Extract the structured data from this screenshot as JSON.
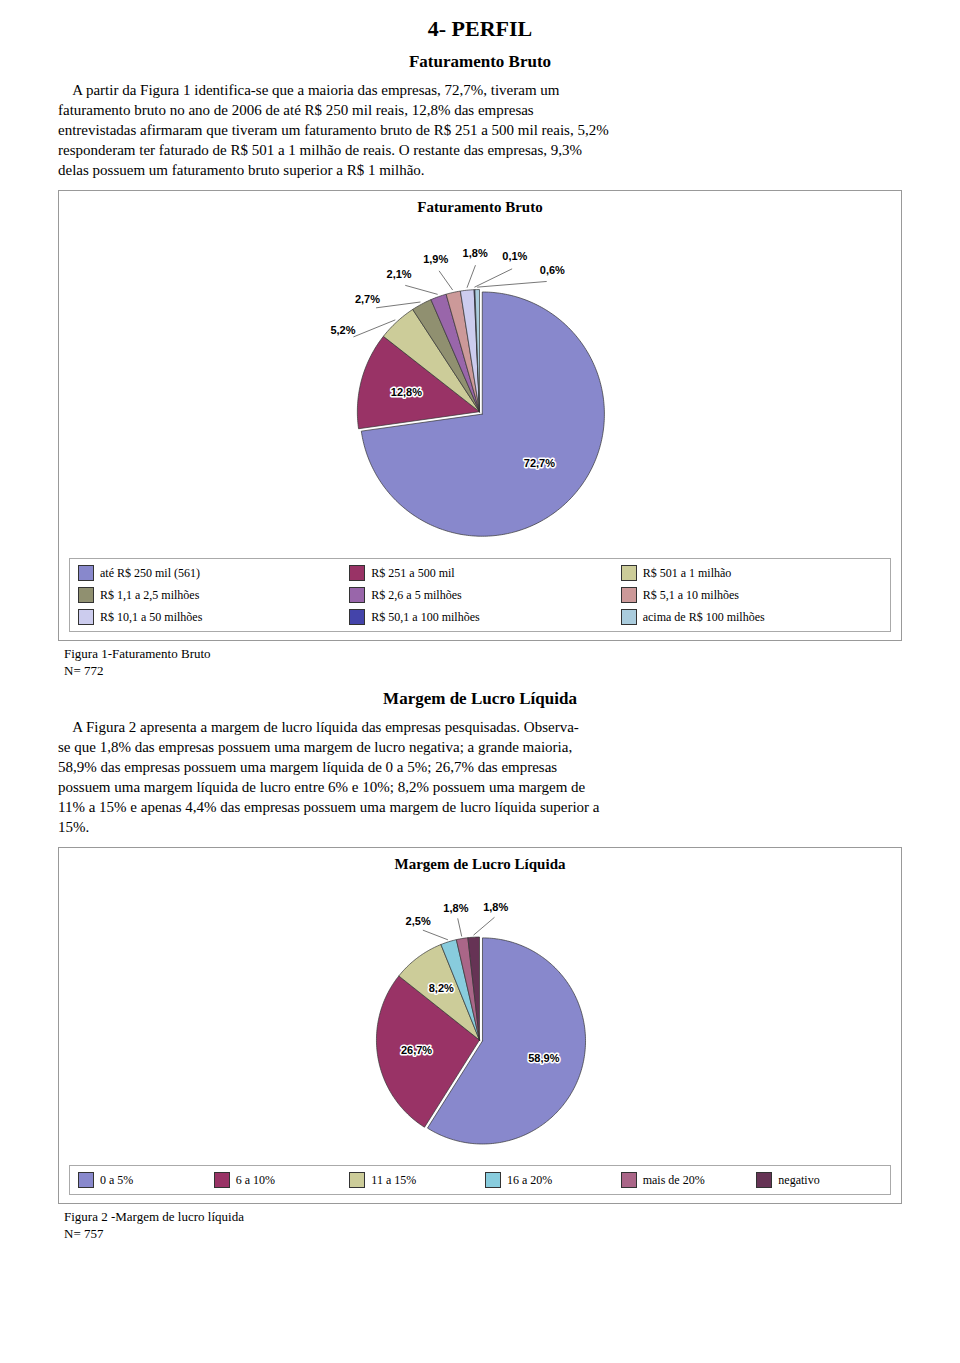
{
  "title": "4- PERFIL",
  "chart_data": [
    {
      "type": "pie",
      "subtitle": "Faturamento Bruto",
      "annotations": [
        "    A partir da Figura 1 identifica-se que a maioria das empresas, 72,7%, tiveram um",
        "faturamento bruto no ano de 2006 de até R$ 250 mil reais, 12,8% das empresas",
        "entrevistadas afirmaram que tiveram um faturamento bruto de R$ 251 a 500 mil reais, 5,2%",
        "responderam ter faturado de R$ 501 a 1 milhão de reais. O restante das empresas, 9,3%",
        "delas possuem um faturamento bruto superior a R$ 1 milhão."
      ],
      "title": "Faturamento Bruto",
      "categories": [
        "até R$ 250 mil (561)",
        "R$ 251 a 500 mil",
        "R$ 501 a 1 milhão",
        "R$ 1,1 a 2,5 milhões",
        "R$ 2,6 a 5 milhões",
        "R$ 5,1 a 10 milhões",
        "R$ 10,1 a 50 milhões",
        "R$ 50,1 a 100 milhões",
        "acima de R$ 100 milhões"
      ],
      "values": [
        72.7,
        12.8,
        5.2,
        2.7,
        2.1,
        1.9,
        1.8,
        0.1,
        0.6
      ],
      "value_labels": [
        "72,7%",
        "12,8%",
        "5,2%",
        "2,7%",
        "2,1%",
        "1,9%",
        "1,8%",
        "0,1%",
        "0,6%"
      ],
      "colors": [
        "#8888CC",
        "#993366",
        "#CCCC99",
        "#909070",
        "#9966AA",
        "#CC9999",
        "#CCCCEE",
        "#4444AA",
        "#AACCDD"
      ],
      "data_labels": true,
      "legend": "bottom",
      "caption": [
        "Figura 1-Faturamento Bruto",
        "N= 772"
      ]
    },
    {
      "type": "pie",
      "subtitle": "Margem de Lucro Líquida",
      "annotations": [
        "    A Figura 2 apresenta a margem de lucro líquida das empresas pesquisadas. Observa-",
        "se que 1,8% das empresas possuem uma margem de lucro negativa; a grande maioria,",
        "58,9% das empresas possuem uma margem líquida de 0 a 5%; 26,7% das empresas",
        "possuem uma margem líquida de lucro entre 6% e 10%; 8,2% possuem uma margem de",
        "11% a 15% e apenas 4,4% das empresas possuem uma margem de lucro líquida superior a",
        "15%."
      ],
      "title": "Margem de Lucro Líquida",
      "categories": [
        "0 a 5%",
        "6 a 10%",
        "11 a 15%",
        "16 a 20%",
        "mais de 20%",
        "negativo"
      ],
      "values": [
        58.9,
        26.7,
        8.2,
        2.5,
        1.8,
        1.8
      ],
      "value_labels": [
        "58,9%",
        "26,7%",
        "8,2%",
        "2,5%",
        "1,8%",
        "1,8%"
      ],
      "colors": [
        "#8888CC",
        "#993366",
        "#CCCC99",
        "#88CCDD",
        "#AA6688",
        "#663355"
      ],
      "data_labels": true,
      "legend": "bottom",
      "caption": [
        "Figura 2 -Margem de lucro líquida",
        "N= 757"
      ]
    }
  ]
}
